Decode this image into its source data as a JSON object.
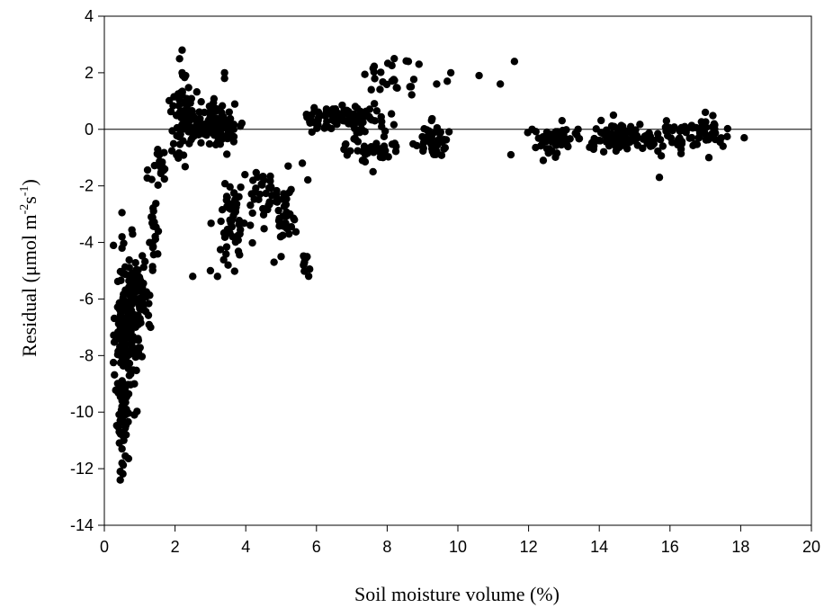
{
  "chart_data": {
    "type": "scatter",
    "xlabel": "Soil moisture volume (%)",
    "ylabel_parts": {
      "main": "Residual  (μmol m",
      "sup1": "-2",
      "mid": "s",
      "sup2": "-1",
      "end": ")"
    },
    "xlim": [
      0,
      20
    ],
    "ylim": [
      -14,
      4
    ],
    "xticks": [
      0,
      2,
      4,
      6,
      8,
      10,
      12,
      14,
      16,
      18,
      20
    ],
    "yticks": [
      -14,
      -12,
      -10,
      -8,
      -6,
      -4,
      -2,
      0,
      2,
      4
    ],
    "reference_line_y": 0,
    "grid": false,
    "marker_color": "#000000",
    "clusters": [
      {
        "cx": 0.5,
        "cy": -8.0,
        "sx": 0.1,
        "sy": 2.0,
        "n": 130
      },
      {
        "cx": 0.8,
        "cy": -6.8,
        "sx": 0.15,
        "sy": 1.2,
        "n": 110
      },
      {
        "cx": 1.1,
        "cy": -5.8,
        "sx": 0.1,
        "sy": 0.7,
        "n": 30
      },
      {
        "cx": 1.4,
        "cy": -3.8,
        "sx": 0.05,
        "sy": 0.6,
        "n": 20
      },
      {
        "cx": 1.6,
        "cy": -1.3,
        "sx": 0.15,
        "sy": 0.5,
        "n": 20
      },
      {
        "cx": 2.2,
        "cy": 0.4,
        "sx": 0.15,
        "sy": 0.8,
        "n": 60
      },
      {
        "cx": 3.1,
        "cy": 0.2,
        "sx": 0.45,
        "sy": 0.4,
        "n": 130
      },
      {
        "cx": 3.6,
        "cy": -3.3,
        "sx": 0.2,
        "sy": 0.8,
        "n": 50
      },
      {
        "cx": 4.6,
        "cy": -2.2,
        "sx": 0.4,
        "sy": 0.4,
        "n": 40
      },
      {
        "cx": 5.1,
        "cy": -3.0,
        "sx": 0.15,
        "sy": 0.4,
        "n": 25
      },
      {
        "cx": 5.7,
        "cy": -4.8,
        "sx": 0.05,
        "sy": 0.2,
        "n": 10
      },
      {
        "cx": 6.8,
        "cy": 0.4,
        "sx": 0.6,
        "sy": 0.2,
        "n": 90
      },
      {
        "cx": 7.6,
        "cy": -0.6,
        "sx": 0.4,
        "sy": 0.3,
        "n": 45
      },
      {
        "cx": 8.1,
        "cy": 1.8,
        "sx": 0.5,
        "sy": 0.3,
        "n": 22
      },
      {
        "cx": 9.3,
        "cy": -0.4,
        "sx": 0.2,
        "sy": 0.3,
        "n": 50
      },
      {
        "cx": 12.8,
        "cy": -0.4,
        "sx": 0.4,
        "sy": 0.25,
        "n": 55
      },
      {
        "cx": 14.5,
        "cy": -0.3,
        "sx": 0.35,
        "sy": 0.25,
        "n": 85
      },
      {
        "cx": 15.6,
        "cy": -0.4,
        "sx": 0.4,
        "sy": 0.2,
        "n": 40
      },
      {
        "cx": 16.6,
        "cy": -0.2,
        "sx": 0.4,
        "sy": 0.25,
        "n": 35
      },
      {
        "cx": 17.2,
        "cy": -0.1,
        "sx": 0.2,
        "sy": 0.3,
        "n": 15
      }
    ],
    "points": [
      [
        0.45,
        -12.4
      ],
      [
        0.45,
        -12.1
      ],
      [
        0.5,
        -11.8
      ],
      [
        0.5,
        -11.3
      ],
      [
        0.55,
        -11.0
      ],
      [
        0.45,
        -10.3
      ],
      [
        0.5,
        -9.8
      ],
      [
        0.85,
        -10.1
      ],
      [
        0.85,
        -9.0
      ],
      [
        0.5,
        -4.2
      ],
      [
        0.5,
        -3.8
      ],
      [
        2.2,
        2.8
      ],
      [
        2.2,
        2.0
      ],
      [
        2.3,
        1.9
      ],
      [
        3.4,
        2.0
      ],
      [
        3.4,
        1.8
      ],
      [
        2.5,
        -5.2
      ],
      [
        3.0,
        -5.0
      ],
      [
        3.2,
        -5.2
      ],
      [
        3.5,
        -4.8
      ],
      [
        4.8,
        -4.7
      ],
      [
        5.0,
        -4.5
      ],
      [
        5.2,
        -1.3
      ],
      [
        5.6,
        -1.2
      ],
      [
        8.2,
        2.5
      ],
      [
        8.6,
        2.4
      ],
      [
        8.9,
        2.3
      ],
      [
        9.4,
        1.6
      ],
      [
        9.7,
        1.7
      ],
      [
        9.8,
        2.0
      ],
      [
        10.6,
        1.9
      ],
      [
        11.2,
        1.6
      ],
      [
        11.6,
        2.4
      ],
      [
        7.3,
        -1.1
      ],
      [
        7.6,
        -1.5
      ],
      [
        11.5,
        -0.9
      ],
      [
        12.1,
        0.0
      ],
      [
        13.4,
        0.0
      ],
      [
        15.7,
        -1.7
      ],
      [
        17.1,
        -1.0
      ],
      [
        17.5,
        -0.6
      ],
      [
        18.1,
        -0.3
      ],
      [
        14.4,
        0.5
      ],
      [
        17.0,
        0.6
      ],
      [
        15.9,
        0.3
      ]
    ]
  }
}
